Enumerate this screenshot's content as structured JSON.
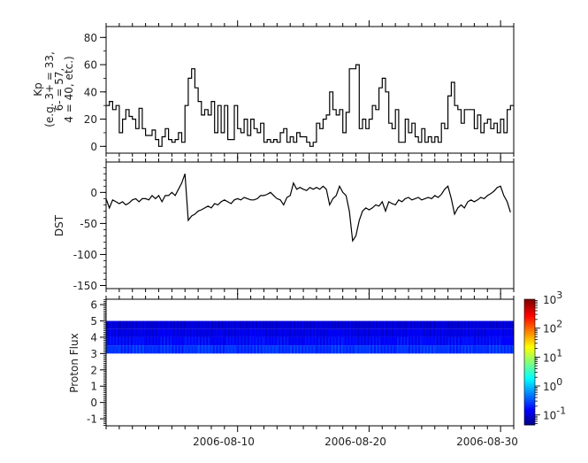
{
  "chart_data": [
    {
      "type": "line",
      "ylabel_lines": [
        "Kp",
        "(e.g. 3+ = 33,",
        "6- = 57,",
        "4 = 40, etc.)"
      ],
      "x_start": "2006-08-01",
      "x_step_hours": 6,
      "xlim": [
        "2006-08-01",
        "2006-09-01"
      ],
      "ylim": [
        -5,
        88
      ],
      "yticks": [
        0,
        20,
        40,
        60,
        80
      ],
      "line_color": "#000000",
      "values": [
        30,
        33,
        27,
        30,
        10,
        20,
        27,
        22,
        20,
        13,
        28,
        13,
        8,
        8,
        12,
        5,
        0,
        7,
        13,
        5,
        3,
        5,
        10,
        3,
        30,
        50,
        57,
        43,
        33,
        23,
        27,
        23,
        33,
        10,
        30,
        10,
        30,
        5,
        5,
        30,
        13,
        10,
        20,
        8,
        20,
        13,
        10,
        17,
        3,
        5,
        3,
        5,
        3,
        10,
        13,
        3,
        7,
        3,
        10,
        7,
        7,
        3,
        0,
        3,
        17,
        13,
        20,
        23,
        40,
        27,
        23,
        27,
        10,
        25,
        57,
        57,
        60,
        13,
        20,
        13,
        20,
        30,
        27,
        43,
        50,
        40,
        17,
        13,
        27,
        3,
        3,
        20,
        10,
        17,
        7,
        3,
        13,
        3,
        7,
        3,
        7,
        3,
        17,
        13,
        37,
        47,
        30,
        27,
        17,
        27,
        27,
        27,
        13,
        23,
        10,
        17,
        20,
        13,
        17,
        10,
        20,
        10,
        27,
        30
      ]
    },
    {
      "type": "line",
      "ylabel": "DST",
      "x_start": "2006-08-01",
      "x_step_hours": 6,
      "xlim": [
        "2006-08-01",
        "2006-09-01"
      ],
      "ylim": [
        -155,
        49
      ],
      "yticks": [
        0,
        -50,
        -100,
        -150
      ],
      "line_color": "#000000",
      "values": [
        -10,
        -25,
        -12,
        -15,
        -18,
        -15,
        -20,
        -17,
        -12,
        -10,
        -15,
        -10,
        -10,
        -12,
        -5,
        -10,
        -5,
        -15,
        -5,
        -5,
        0,
        -5,
        5,
        15,
        30,
        -45,
        -38,
        -35,
        -30,
        -28,
        -25,
        -22,
        -25,
        -18,
        -20,
        -15,
        -12,
        -15,
        -18,
        -12,
        -10,
        -12,
        -8,
        -10,
        -12,
        -12,
        -10,
        -5,
        -5,
        -3,
        0,
        -5,
        -10,
        -12,
        -20,
        -8,
        -5,
        15,
        5,
        8,
        5,
        3,
        8,
        5,
        8,
        5,
        10,
        5,
        -20,
        -10,
        -5,
        10,
        0,
        -5,
        -30,
        -78,
        -70,
        -45,
        -30,
        -25,
        -28,
        -25,
        -20,
        -22,
        -15,
        -30,
        -15,
        -18,
        -20,
        -12,
        -15,
        -10,
        -8,
        -12,
        -10,
        -8,
        -12,
        -10,
        -8,
        -10,
        -5,
        -8,
        -3,
        5,
        10,
        -10,
        -35,
        -25,
        -20,
        -25,
        -15,
        -12,
        -15,
        -12,
        -8,
        -10,
        -5,
        -2,
        2,
        8,
        10,
        -5,
        -15,
        -32
      ]
    },
    {
      "type": "heatmap",
      "ylabel": "Proton Flux",
      "x_start": "2006-08-01",
      "x_step_hours": 24,
      "xlim": [
        "2006-08-01",
        "2006-09-01"
      ],
      "ylim": [
        -1.43,
        6.33
      ],
      "yticks": [
        -1,
        0,
        1,
        2,
        3,
        4,
        5,
        6
      ],
      "xtick_labels": [
        "2006-08-10",
        "2006-08-20",
        "2006-08-30"
      ],
      "y_bins": [
        [
          3.0,
          3.5
        ],
        [
          3.5,
          4.0
        ],
        [
          4.0,
          4.5
        ],
        [
          4.5,
          5.0
        ]
      ],
      "z_rows": [
        [
          0.26,
          0.24,
          0.28,
          0.25,
          0.27,
          0.24,
          0.26,
          0.29,
          0.25,
          0.27,
          0.24,
          0.26,
          0.28,
          0.25,
          0.27,
          0.26,
          0.24,
          0.28,
          0.25,
          0.27,
          0.26,
          0.24,
          0.27,
          0.25,
          0.28,
          0.26,
          0.24,
          0.27,
          0.25,
          0.28,
          0.26
        ],
        [
          0.17,
          0.16,
          0.18,
          0.15,
          0.17,
          0.16,
          0.18,
          0.17,
          0.15,
          0.17,
          0.16,
          0.18,
          0.16,
          0.17,
          0.15,
          0.17,
          0.16,
          0.18,
          0.17,
          0.15,
          0.17,
          0.16,
          0.18,
          0.16,
          0.17,
          0.15,
          0.17,
          0.18,
          0.16,
          0.17,
          0.16
        ],
        [
          0.13,
          0.12,
          0.13,
          0.12,
          0.14,
          0.12,
          0.13,
          0.12,
          0.13,
          0.12,
          0.13,
          0.14,
          0.12,
          0.13,
          0.12,
          0.13,
          0.12,
          0.14,
          0.13,
          0.12,
          0.13,
          0.12,
          0.13,
          0.14,
          0.12,
          0.13,
          0.12,
          0.13,
          0.12,
          0.14,
          0.13
        ],
        [
          0.11,
          0.1,
          0.11,
          0.1,
          0.11,
          0.1,
          0.11,
          0.11,
          0.1,
          0.11,
          0.1,
          0.11,
          0.1,
          0.11,
          0.11,
          0.1,
          0.11,
          0.1,
          0.11,
          0.1,
          0.11,
          0.11,
          0.1,
          0.11,
          0.1,
          0.11,
          0.1,
          0.11,
          0.11,
          0.1,
          0.11
        ]
      ],
      "colorbar": {
        "scale": "log",
        "colormap": "jet",
        "range": [
          0.045,
          1000
        ],
        "tick_bases": [
          "10",
          "10",
          "10",
          "10",
          "10"
        ],
        "tick_exponents": [
          "3",
          "2",
          "1",
          "0",
          "-1"
        ],
        "tick_values": [
          1000,
          100,
          10,
          1,
          0.1
        ]
      }
    }
  ]
}
